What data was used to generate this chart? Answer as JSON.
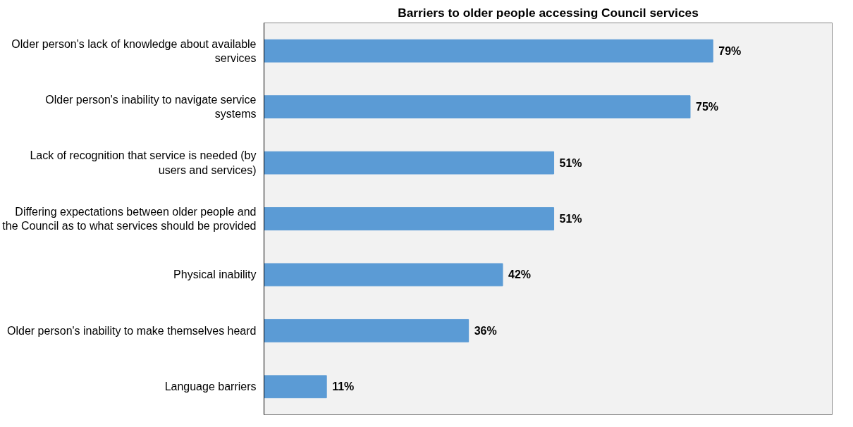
{
  "chart_data": {
    "type": "bar",
    "orientation": "horizontal",
    "title": "Barriers to older people accessing Council services",
    "categories": [
      "Older person's lack of knowledge about available services",
      "Older person's inability to navigate service systems",
      "Lack of recognition that service is needed (by users and services)",
      "Differing expectations between older people and the Council as to what services should be provided",
      "Physical inability",
      "Older person's inability to make themselves heard",
      "Language barriers"
    ],
    "values": [
      79,
      75,
      51,
      51,
      42,
      36,
      11
    ],
    "value_labels": [
      "79%",
      "75%",
      "51%",
      "51%",
      "42%",
      "36%",
      "11%"
    ],
    "color": "#5b9bd5",
    "xlim": [
      0,
      100
    ],
    "grid": false,
    "tick_labels": "y"
  }
}
